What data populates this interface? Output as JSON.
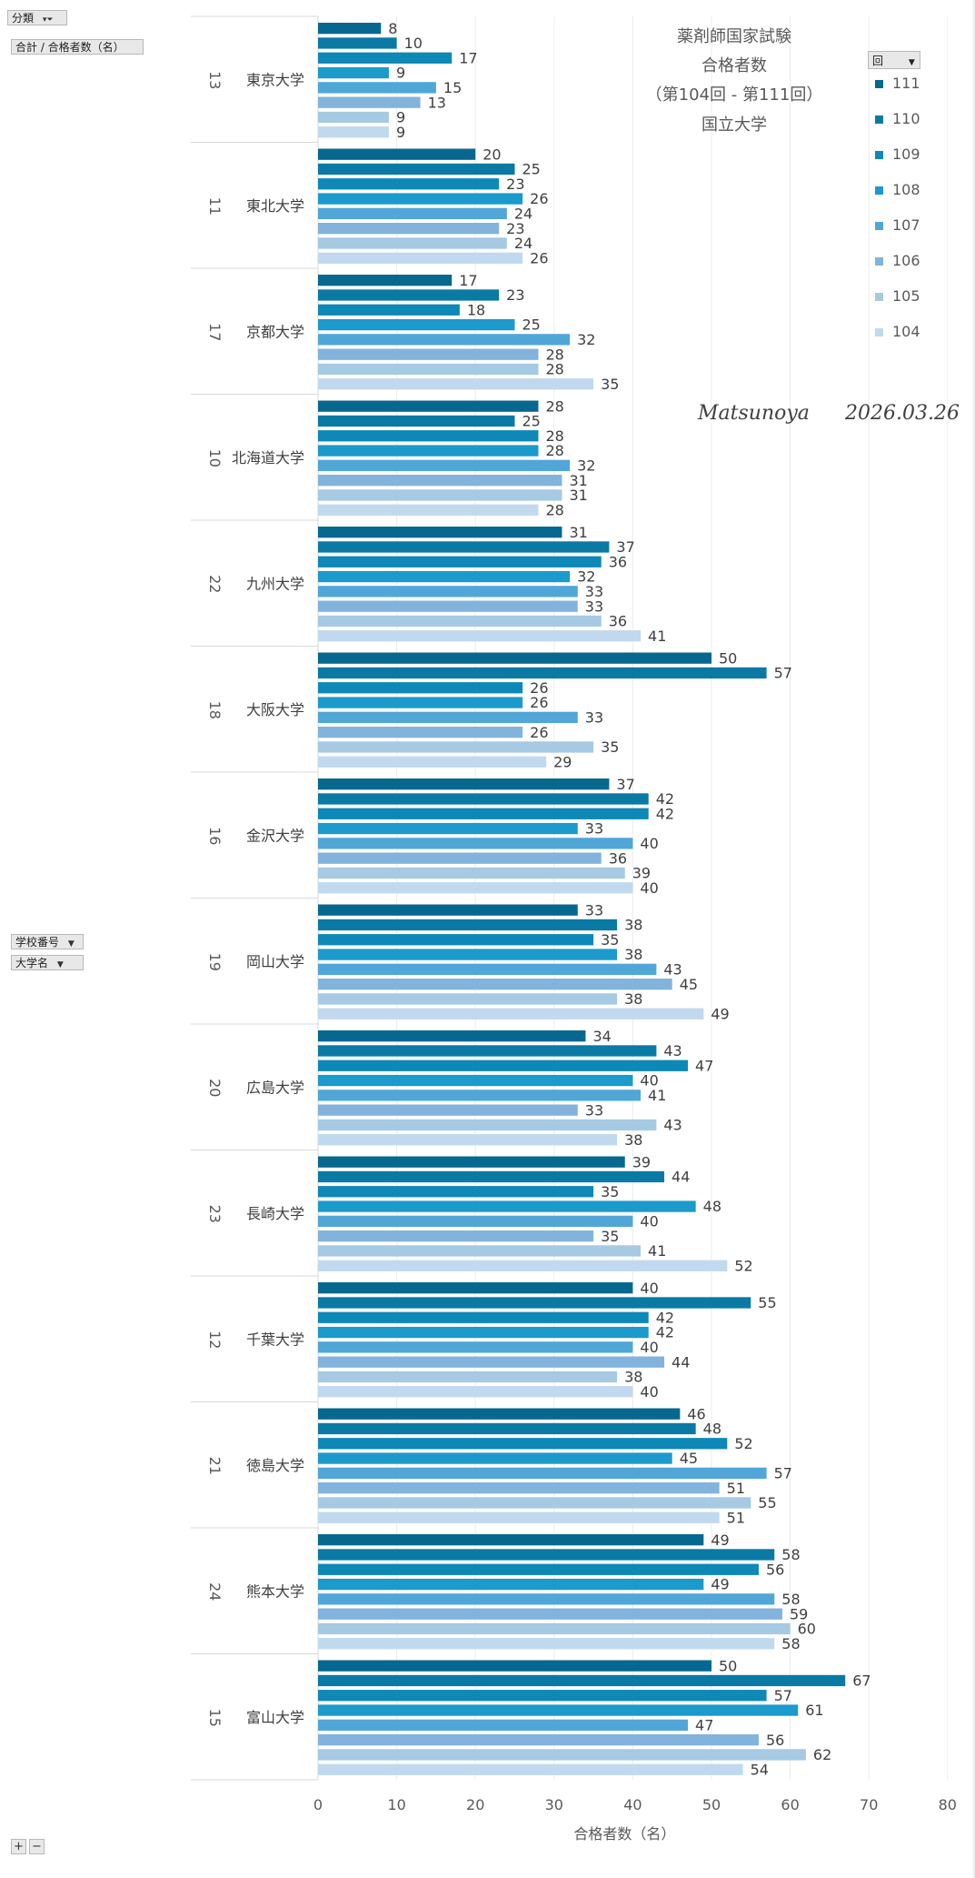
{
  "pivot": {
    "filter_label": "分類",
    "value_label": "合計 / 合格者数（名）",
    "row_field_1": "学校番号",
    "row_field_2": "大学名",
    "legend_field": "回",
    "expand_label": "+",
    "collapse_label": "−"
  },
  "watermark": {
    "author": "Matsunoya",
    "date": "2026.03.26"
  },
  "colors": {
    "111": "#07688f",
    "110": "#0a7aa5",
    "109": "#0e88b6",
    "108": "#1b9acb",
    "107": "#51a6d8",
    "106": "#82b3dc",
    "105": "#a6c9e4",
    "104": "#c1d9ee"
  },
  "chart_data": {
    "type": "bar",
    "orientation": "horizontal",
    "title": [
      "薬剤師国家試験",
      "合格者数",
      "（第104回 - 第111回）",
      "国立大学"
    ],
    "xlabel": "合格者数（名）",
    "ylabel": "",
    "xlim": [
      0,
      80
    ],
    "xticks": [
      0,
      10,
      20,
      30,
      40,
      50,
      60,
      70,
      80
    ],
    "grid": true,
    "legend_position": "top-right",
    "series_names": [
      "111",
      "110",
      "109",
      "108",
      "107",
      "106",
      "105",
      "104"
    ],
    "categories": [
      {
        "number": "13",
        "name": "東京大学",
        "values": [
          8,
          10,
          17,
          9,
          15,
          13,
          9,
          9
        ]
      },
      {
        "number": "11",
        "name": "東北大学",
        "values": [
          20,
          25,
          23,
          26,
          24,
          23,
          24,
          26
        ]
      },
      {
        "number": "17",
        "name": "京都大学",
        "values": [
          17,
          23,
          18,
          25,
          32,
          28,
          28,
          35
        ]
      },
      {
        "number": "10",
        "name": "北海道大学",
        "values": [
          28,
          25,
          28,
          28,
          32,
          31,
          31,
          28
        ]
      },
      {
        "number": "22",
        "name": "九州大学",
        "values": [
          31,
          37,
          36,
          32,
          33,
          33,
          36,
          41
        ]
      },
      {
        "number": "18",
        "name": "大阪大学",
        "values": [
          50,
          57,
          26,
          26,
          33,
          26,
          35,
          29
        ]
      },
      {
        "number": "16",
        "name": "金沢大学",
        "values": [
          37,
          42,
          42,
          33,
          40,
          36,
          39,
          40
        ]
      },
      {
        "number": "19",
        "name": "岡山大学",
        "values": [
          33,
          38,
          35,
          38,
          43,
          45,
          38,
          49
        ]
      },
      {
        "number": "20",
        "name": "広島大学",
        "values": [
          34,
          43,
          47,
          40,
          41,
          33,
          43,
          38
        ]
      },
      {
        "number": "23",
        "name": "長崎大学",
        "values": [
          39,
          44,
          35,
          48,
          40,
          35,
          41,
          52
        ]
      },
      {
        "number": "12",
        "name": "千葉大学",
        "values": [
          40,
          55,
          42,
          42,
          40,
          44,
          38,
          40
        ]
      },
      {
        "number": "21",
        "name": "徳島大学",
        "values": [
          46,
          48,
          52,
          45,
          57,
          51,
          55,
          51
        ]
      },
      {
        "number": "24",
        "name": "熊本大学",
        "values": [
          49,
          58,
          56,
          49,
          58,
          59,
          60,
          58
        ]
      },
      {
        "number": "15",
        "name": "富山大学",
        "values": [
          50,
          67,
          57,
          61,
          47,
          56,
          62,
          54
        ]
      }
    ]
  }
}
